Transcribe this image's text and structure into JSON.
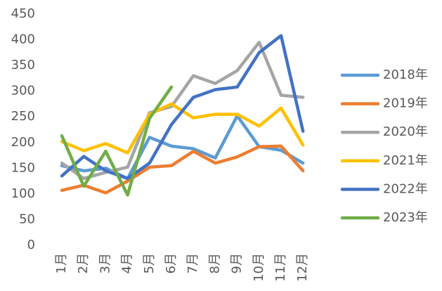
{
  "chart_data": {
    "type": "line",
    "categories": [
      "1月",
      "2月",
      "3月",
      "4月",
      "5月",
      "6月",
      "7月",
      "8月",
      "9月",
      "10月",
      "11月",
      "12月"
    ],
    "series": [
      {
        "name": "2018年",
        "color": "#5B9BD5",
        "values": [
          155,
          145,
          150,
          130,
          210,
          193,
          188,
          170,
          252,
          192,
          185,
          160
        ]
      },
      {
        "name": "2019年",
        "color": "#ED7D31",
        "values": [
          107,
          117,
          102,
          125,
          152,
          155,
          183,
          160,
          172,
          192,
          193,
          145
        ]
      },
      {
        "name": "2020年",
        "color": "#A5A5A5",
        "values": [
          160,
          130,
          142,
          152,
          258,
          270,
          330,
          315,
          340,
          395,
          292,
          288
        ]
      },
      {
        "name": "2021年",
        "color": "#FFC000",
        "values": [
          202,
          184,
          198,
          180,
          255,
          275,
          248,
          255,
          255,
          232,
          267,
          195
        ]
      },
      {
        "name": "2022年",
        "color": "#4472C4",
        "values": [
          135,
          173,
          145,
          130,
          160,
          235,
          288,
          303,
          308,
          375,
          408,
          222
        ]
      },
      {
        "name": "2023年",
        "color": "#70AD47",
        "values": [
          213,
          115,
          183,
          98,
          247,
          308,
          null,
          null,
          null,
          null,
          null,
          null
        ]
      }
    ],
    "ylim": [
      0,
      450
    ],
    "yticks": [
      0,
      50,
      100,
      150,
      200,
      250,
      300,
      350,
      400,
      450
    ],
    "grid": false,
    "legend": "right"
  }
}
